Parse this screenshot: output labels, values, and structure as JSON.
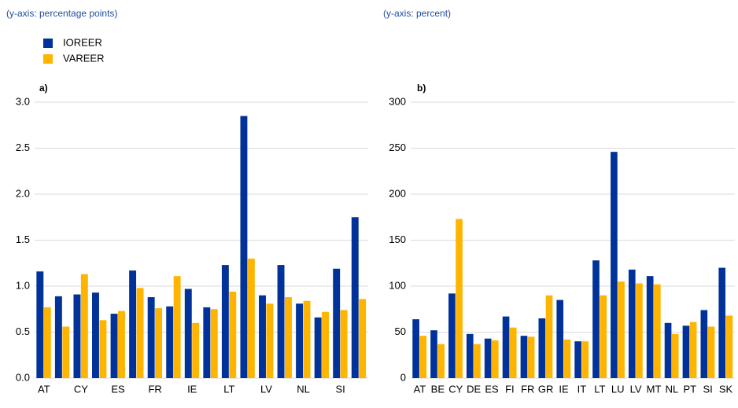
{
  "chart_data": [
    {
      "type": "bar",
      "subtitle": "(y-axis: percentage points)",
      "title": "a)",
      "categories": [
        "AT",
        null,
        "CY",
        null,
        "ES",
        null,
        "FR",
        null,
        "IE",
        null,
        "LT",
        null,
        "LV",
        null,
        "NL",
        null,
        "SI",
        null
      ],
      "series": [
        {
          "name": "IOREER",
          "color": "#003299",
          "values": [
            1.16,
            0.89,
            0.91,
            0.93,
            0.7,
            1.17,
            0.88,
            0.78,
            0.97,
            0.77,
            1.23,
            2.85,
            0.9,
            1.23,
            0.81,
            0.66,
            1.19,
            1.75
          ]
        },
        {
          "name": "VAREER",
          "color": "#ffb400",
          "values": [
            0.77,
            0.56,
            1.13,
            0.63,
            0.73,
            0.98,
            0.76,
            1.11,
            0.6,
            0.75,
            0.94,
            1.3,
            0.81,
            0.88,
            0.84,
            0.72,
            0.74,
            0.86
          ]
        }
      ],
      "ylim": [
        0,
        3
      ],
      "yticks": [
        {
          "value": 0,
          "label": "0.0"
        },
        {
          "value": 0.5,
          "label": "0.5"
        },
        {
          "value": 1,
          "label": "1.0"
        },
        {
          "value": 1.5,
          "label": "1.5"
        },
        {
          "value": 2,
          "label": "2.0"
        },
        {
          "value": 2.5,
          "label": "2.5"
        },
        {
          "value": 3,
          "label": "3.0"
        }
      ],
      "grid": true
    },
    {
      "type": "bar",
      "subtitle": "(y-axis: percent)",
      "title": "b)",
      "categories": [
        "AT",
        "BE",
        "CY",
        "DE",
        "ES",
        "FI",
        "FR",
        "GR",
        "IE",
        "IT",
        "LT",
        "LU",
        "LV",
        "MT",
        "NL",
        "PT",
        "SI",
        "SK"
      ],
      "series": [
        {
          "color": "#003299",
          "values": [
            64,
            52,
            92,
            48,
            43,
            67,
            46,
            65,
            85,
            40,
            128,
            246,
            118,
            111,
            60,
            57,
            74,
            120
          ]
        },
        {
          "color": "#ffb400",
          "values": [
            46,
            37,
            173,
            37,
            41,
            55,
            45,
            90,
            42,
            40,
            90,
            105,
            103,
            102,
            48,
            61,
            56,
            68
          ]
        }
      ],
      "ylim": [
        0,
        300
      ],
      "yticks": [
        0,
        50,
        100,
        150,
        200,
        250,
        300
      ],
      "grid": true
    }
  ]
}
